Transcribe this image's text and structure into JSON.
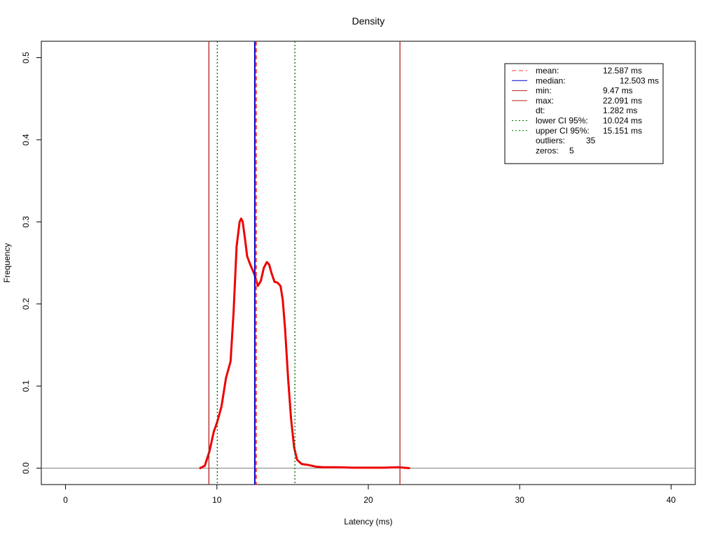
{
  "chart_data": {
    "type": "line",
    "title": "Density",
    "xlabel": "Latency (ms)",
    "ylabel": "Frequency",
    "xlim": [
      -1.6,
      41.6
    ],
    "ylim": [
      -0.02,
      0.52
    ],
    "x_ticks": [
      0,
      10,
      20,
      30,
      40
    ],
    "y_ticks": [
      0.0,
      0.1,
      0.2,
      0.3,
      0.4,
      0.5
    ],
    "y_tick_labels": [
      "0.0",
      "0.1",
      "0.2",
      "0.3",
      "0.4",
      "0.5"
    ],
    "series": [
      {
        "color": "#ee0000",
        "x": [
          8.9,
          9.2,
          9.5,
          9.8,
          10.0,
          10.3,
          10.6,
          10.9,
          11.1,
          11.3,
          11.5,
          11.6,
          11.7,
          11.85,
          12.0,
          12.2,
          12.5,
          12.7,
          12.9,
          13.1,
          13.3,
          13.45,
          13.6,
          13.8,
          14.0,
          14.2,
          14.35,
          14.5,
          14.7,
          14.9,
          15.1,
          15.3,
          15.6,
          16.0,
          16.5,
          17.0,
          18.0,
          19.0,
          20.0,
          21.0,
          22.0,
          22.7
        ],
        "y": [
          0.0,
          0.003,
          0.02,
          0.045,
          0.055,
          0.075,
          0.11,
          0.13,
          0.19,
          0.27,
          0.3,
          0.304,
          0.3,
          0.28,
          0.258,
          0.248,
          0.235,
          0.222,
          0.228,
          0.244,
          0.251,
          0.248,
          0.238,
          0.227,
          0.226,
          0.222,
          0.205,
          0.17,
          0.11,
          0.06,
          0.025,
          0.01,
          0.005,
          0.004,
          0.002,
          0.001,
          0.001,
          0.0005,
          0.0005,
          0.0005,
          0.001,
          0.0
        ]
      }
    ],
    "reference_lines": [
      {
        "x": 12.587,
        "color": "#ff3333",
        "style": "dashed"
      },
      {
        "x": 12.503,
        "color": "#0000cc",
        "style": "solid"
      },
      {
        "x": 9.47,
        "color": "#b22222",
        "style": "solid"
      },
      {
        "x": 22.091,
        "color": "#b22222",
        "style": "solid"
      },
      {
        "x": 10.024,
        "color": "#006400",
        "style": "dotted"
      },
      {
        "x": 15.151,
        "color": "#006400",
        "style": "dotted"
      }
    ],
    "hline": {
      "y": 0,
      "color": "#808080"
    },
    "legend": {
      "position": "top-right",
      "entries": [
        {
          "label": "mean:",
          "value": "12.587 ms",
          "color": "#ff3333",
          "style": "dashed"
        },
        {
          "label": "median:",
          "value": "12.503 ms",
          "color": "#0000cc",
          "style": "solid"
        },
        {
          "label": "min:",
          "value": "9.47 ms",
          "color": "#b22222",
          "style": "solid"
        },
        {
          "label": "max:",
          "value": "22.091 ms",
          "color": "#b22222",
          "style": "solid"
        },
        {
          "label": "dt:",
          "value": "1.282 ms",
          "color": "",
          "style": "none"
        },
        {
          "label": "lower CI 95%:",
          "value": "10.024 ms",
          "color": "#006400",
          "style": "dotted"
        },
        {
          "label": "upper CI 95%:",
          "value": "15.151 ms",
          "color": "#006400",
          "style": "dotted"
        },
        {
          "label": "outliers:",
          "value": "35",
          "color": "",
          "style": "none"
        },
        {
          "label": "zeros:",
          "value": "5",
          "color": "",
          "style": "none"
        }
      ]
    }
  }
}
